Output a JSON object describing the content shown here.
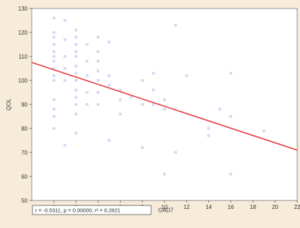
{
  "chart_data": {
    "type": "scatter",
    "title": "",
    "xlabel": "GAD7",
    "ylabel": "QOL",
    "xlim": [
      -2,
      22
    ],
    "ylim": [
      50,
      130
    ],
    "xticks": [
      0,
      2,
      4,
      6,
      8,
      10,
      12,
      14,
      16,
      18,
      20,
      22
    ],
    "yticks": [
      50,
      60,
      70,
      80,
      90,
      100,
      110,
      120,
      130
    ],
    "grid": false,
    "stats_annotation": "r = -0.5311, p = 0.00000; r² = 0.2821",
    "regression_line": {
      "x": [
        -2,
        22
      ],
      "y": [
        107.5,
        71
      ]
    },
    "colors": {
      "points": "#c7cdf2",
      "regression": "#e8393c",
      "plot_bg": "#ffffff",
      "page_bg": "#f6ecd9"
    },
    "points": [
      {
        "x": 0,
        "y": 126
      },
      {
        "x": 0,
        "y": 120
      },
      {
        "x": 0,
        "y": 118
      },
      {
        "x": 0,
        "y": 115
      },
      {
        "x": 0,
        "y": 112
      },
      {
        "x": 0,
        "y": 110
      },
      {
        "x": 0,
        "y": 108
      },
      {
        "x": 0,
        "y": 105
      },
      {
        "x": 0,
        "y": 102
      },
      {
        "x": 0,
        "y": 100
      },
      {
        "x": 0,
        "y": 92
      },
      {
        "x": 0,
        "y": 88
      },
      {
        "x": 0,
        "y": 85
      },
      {
        "x": 0,
        "y": 80
      },
      {
        "x": 1,
        "y": 125
      },
      {
        "x": 1,
        "y": 117
      },
      {
        "x": 1,
        "y": 110
      },
      {
        "x": 1,
        "y": 105
      },
      {
        "x": 1,
        "y": 100
      },
      {
        "x": 1,
        "y": 73
      },
      {
        "x": 2,
        "y": 121
      },
      {
        "x": 2,
        "y": 118
      },
      {
        "x": 2,
        "y": 115
      },
      {
        "x": 2,
        "y": 112
      },
      {
        "x": 2,
        "y": 110
      },
      {
        "x": 2,
        "y": 106
      },
      {
        "x": 2,
        "y": 103
      },
      {
        "x": 2,
        "y": 100
      },
      {
        "x": 2,
        "y": 96
      },
      {
        "x": 2,
        "y": 93
      },
      {
        "x": 2,
        "y": 90
      },
      {
        "x": 2,
        "y": 86
      },
      {
        "x": 2,
        "y": 78
      },
      {
        "x": 3,
        "y": 115
      },
      {
        "x": 3,
        "y": 108
      },
      {
        "x": 3,
        "y": 102
      },
      {
        "x": 3,
        "y": 95
      },
      {
        "x": 3,
        "y": 90
      },
      {
        "x": 4,
        "y": 118
      },
      {
        "x": 4,
        "y": 112
      },
      {
        "x": 4,
        "y": 108
      },
      {
        "x": 4,
        "y": 104
      },
      {
        "x": 4,
        "y": 100
      },
      {
        "x": 4,
        "y": 95
      },
      {
        "x": 4,
        "y": 90
      },
      {
        "x": 5,
        "y": 116
      },
      {
        "x": 5,
        "y": 102
      },
      {
        "x": 5,
        "y": 98
      },
      {
        "x": 5,
        "y": 75
      },
      {
        "x": 6,
        "y": 96
      },
      {
        "x": 6,
        "y": 92
      },
      {
        "x": 6,
        "y": 86
      },
      {
        "x": 7,
        "y": 93
      },
      {
        "x": 8,
        "y": 100
      },
      {
        "x": 8,
        "y": 90
      },
      {
        "x": 8,
        "y": 72
      },
      {
        "x": 9,
        "y": 103
      },
      {
        "x": 9,
        "y": 96
      },
      {
        "x": 9,
        "y": 90
      },
      {
        "x": 10,
        "y": 92
      },
      {
        "x": 10,
        "y": 88
      },
      {
        "x": 10,
        "y": 61
      },
      {
        "x": 11,
        "y": 123
      },
      {
        "x": 11,
        "y": 88
      },
      {
        "x": 11,
        "y": 70
      },
      {
        "x": 12,
        "y": 102
      },
      {
        "x": 14,
        "y": 80
      },
      {
        "x": 14,
        "y": 77
      },
      {
        "x": 15,
        "y": 88
      },
      {
        "x": 16,
        "y": 103
      },
      {
        "x": 16,
        "y": 85
      },
      {
        "x": 16,
        "y": 61
      },
      {
        "x": 19,
        "y": 79
      }
    ]
  }
}
